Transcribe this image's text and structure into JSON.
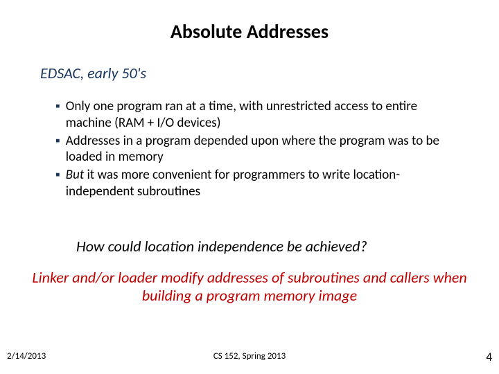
{
  "title": {
    "text": "Absolute Addresses",
    "color": "#000000",
    "fontsize": 28
  },
  "subtitle": {
    "text": "EDSAC, early 50's",
    "color": "#17365d",
    "fontsize": 22
  },
  "bullets": {
    "marker": "▪",
    "marker_color": "#17365d",
    "text_color": "#000000",
    "fontsize": 19,
    "items": [
      {
        "plain": "Only one program ran at a time, with unrestricted access to entire machine (RAM + I/O devices)"
      },
      {
        "plain": "Addresses in a program depended upon where the program was to be loaded in memory"
      },
      {
        "lead_italic": "But",
        "rest": " it was more convenient for programmers to write location-independent subroutines"
      }
    ]
  },
  "question": {
    "text": "How could location independence be achieved?",
    "color": "#000000",
    "fontsize": 22
  },
  "answer": {
    "text": "Linker and/or loader modify addresses of subroutines and callers when building a program memory image",
    "color": "#c00000",
    "fontsize": 22
  },
  "footer": {
    "date": "2/14/2013",
    "center": "CS 152, Spring 2013",
    "page": "4",
    "color": "#000000",
    "fontsize": 13,
    "page_fontsize": 17
  }
}
